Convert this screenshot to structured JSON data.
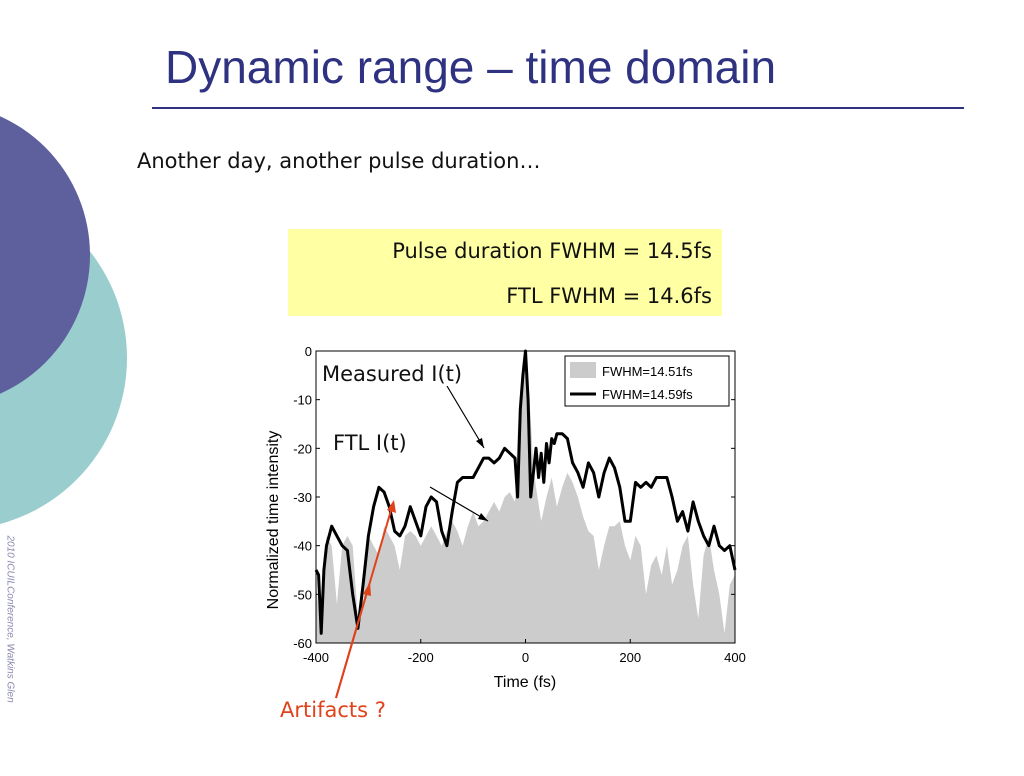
{
  "slide": {
    "title": "Dynamic range – time domain",
    "subtitle": "Another day, another pulse duration…",
    "side_credit": "2010 ICUILConference, Watkins Glen",
    "highlight_box": {
      "line1": "Pulse duration FWHM = 14.5fs",
      "line2": "FTL FWHM = 14.6fs",
      "color": "#ffffa3"
    },
    "annotations": {
      "measured": "Measured I(t)",
      "ftl": "FTL I(t)",
      "artifacts": "Artifacts ?"
    },
    "colors": {
      "title": "#2e3280",
      "circle_dark": "#5e5f9d",
      "circle_teal": "#9acdcd",
      "artifact_arrow": "#e0421b",
      "ftl_fill": "#cccccc",
      "measured_line": "#000000"
    }
  },
  "chart_data": {
    "type": "area",
    "xlabel": "Time (fs)",
    "ylabel": "Normalized time intensity",
    "xlim": [
      -400,
      400
    ],
    "ylim": [
      -60,
      0
    ],
    "xticks": [
      "-400",
      "-200",
      "0",
      "200",
      "400"
    ],
    "yticks": [
      "0",
      "-10",
      "-20",
      "-30",
      "-40",
      "-50",
      "-60"
    ],
    "grid": false,
    "legend_position": "top-right",
    "series": [
      {
        "name": "FWHM=14.51fs",
        "kind": "area",
        "x": [
          -400,
          -390,
          -380,
          -370,
          -360,
          -350,
          -340,
          -330,
          -320,
          -310,
          -300,
          -290,
          -280,
          -270,
          -260,
          -250,
          -240,
          -230,
          -220,
          -210,
          -200,
          -190,
          -180,
          -170,
          -160,
          -150,
          -140,
          -130,
          -120,
          -110,
          -100,
          -90,
          -80,
          -70,
          -60,
          -50,
          -40,
          -30,
          -20,
          -15,
          -10,
          -5,
          0,
          5,
          10,
          15,
          20,
          30,
          40,
          50,
          60,
          70,
          80,
          90,
          100,
          110,
          120,
          130,
          140,
          150,
          160,
          170,
          180,
          190,
          200,
          210,
          220,
          230,
          240,
          250,
          260,
          270,
          280,
          290,
          300,
          310,
          320,
          330,
          340,
          350,
          360,
          370,
          380,
          390,
          400
        ],
        "y": [
          -48,
          -58,
          -38,
          -40,
          -52,
          -40,
          -38,
          -40,
          -55,
          -52,
          -38,
          -40,
          -42,
          -36,
          -38,
          -40,
          -45,
          -38,
          -37,
          -38,
          -40,
          -38,
          -36,
          -38,
          -40,
          -37,
          -35,
          -37,
          -40,
          -36,
          -33,
          -36,
          -35,
          -33,
          -31,
          -33,
          -30,
          -29,
          -31,
          -17,
          -8,
          -4,
          0,
          -6,
          -14,
          -24,
          -28,
          -35,
          -30,
          -26,
          -32,
          -28,
          -25,
          -27,
          -30,
          -34,
          -37,
          -38,
          -45,
          -40,
          -36,
          -36,
          -35,
          -40,
          -43,
          -38,
          -40,
          -50,
          -44,
          -42,
          -46,
          -40,
          -48,
          -45,
          -40,
          -38,
          -48,
          -55,
          -42,
          -38,
          -45,
          -50,
          -58,
          -48,
          -46
        ]
      },
      {
        "name": "FWHM=14.59fs",
        "kind": "line",
        "x": [
          -400,
          -395,
          -390,
          -385,
          -380,
          -370,
          -360,
          -350,
          -340,
          -330,
          -320,
          -310,
          -300,
          -290,
          -280,
          -270,
          -260,
          -250,
          -240,
          -230,
          -220,
          -210,
          -200,
          -190,
          -180,
          -170,
          -160,
          -150,
          -140,
          -130,
          -120,
          -110,
          -100,
          -90,
          -80,
          -70,
          -60,
          -50,
          -40,
          -30,
          -20,
          -15,
          -10,
          -5,
          0,
          5,
          10,
          15,
          20,
          25,
          30,
          35,
          40,
          45,
          50,
          55,
          60,
          70,
          80,
          90,
          100,
          110,
          120,
          130,
          140,
          150,
          160,
          170,
          180,
          190,
          200,
          210,
          220,
          230,
          240,
          250,
          260,
          270,
          280,
          290,
          300,
          310,
          320,
          330,
          340,
          350,
          360,
          370,
          380,
          390,
          400
        ],
        "y": [
          -45,
          -46,
          -58,
          -45,
          -40,
          -36,
          -38,
          -40,
          -41,
          -50,
          -57,
          -48,
          -38,
          -32,
          -28,
          -29,
          -32,
          -37,
          -38,
          -36,
          -32,
          -35,
          -38,
          -32,
          -30,
          -31,
          -37,
          -40,
          -33,
          -27,
          -26,
          -26,
          -26,
          -24,
          -22,
          -22,
          -23,
          -22,
          -20,
          -21,
          -22,
          -30,
          -12,
          -5,
          0,
          -10,
          -30,
          -25,
          -20,
          -26,
          -21,
          -27,
          -19,
          -23,
          -18,
          -19,
          -17,
          -17,
          -18,
          -23,
          -25,
          -28,
          -23,
          -25,
          -30,
          -25,
          -22,
          -24,
          -28,
          -35,
          -35,
          -27,
          -28,
          -27,
          -28,
          -26,
          -26,
          -26,
          -30,
          -35,
          -33,
          -37,
          -31,
          -35,
          -38,
          -40,
          -36,
          -40,
          -41,
          -40,
          -45
        ]
      }
    ]
  }
}
